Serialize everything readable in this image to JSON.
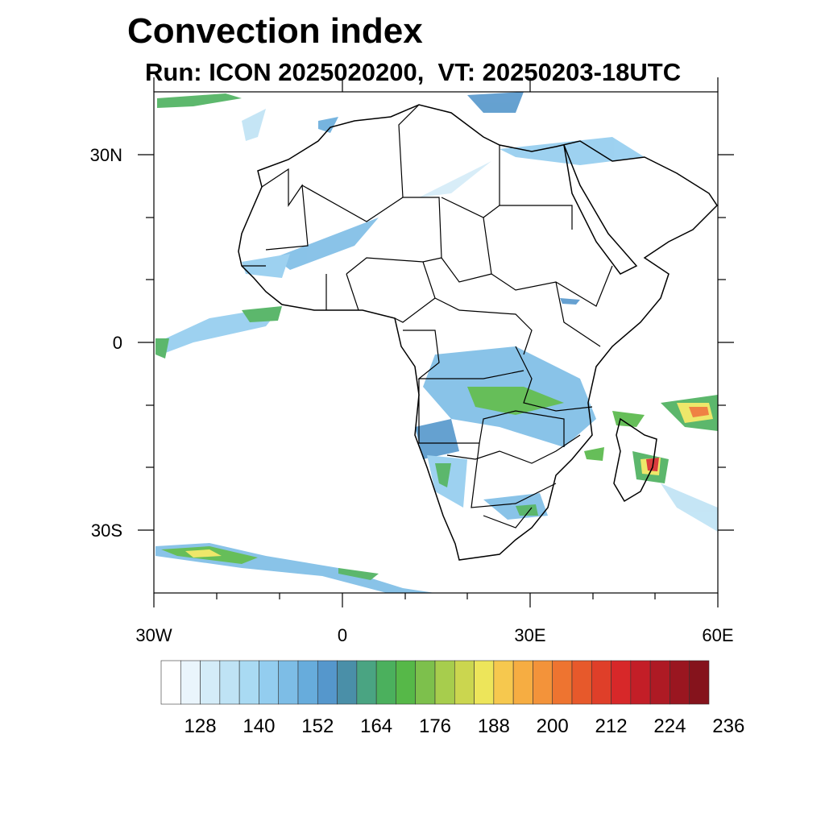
{
  "title": "Convection index",
  "subtitle": "Run: ICON 2025020200,  VT: 20250203-18UTC",
  "map": {
    "region": "Africa",
    "lon_range": [
      -30,
      60
    ],
    "lat_range": [
      -40,
      40
    ],
    "x_ticks": [
      "30W",
      "0",
      "30E",
      "60E"
    ],
    "y_ticks": [
      "30N",
      "0",
      "30S"
    ]
  },
  "colorbar": {
    "colors": [
      "#ffffff",
      "#eaf5fc",
      "#d4ecf8",
      "#bfe3f5",
      "#a9daf3",
      "#93cdef",
      "#7dbde6",
      "#67acdc",
      "#5597cc",
      "#4a8fa8",
      "#4aa482",
      "#4bb05d",
      "#56b848",
      "#7dc04c",
      "#a7cd4d",
      "#cbd64f",
      "#ede55a",
      "#f6c84e",
      "#f6ad42",
      "#f3933a",
      "#ee7430",
      "#e7592b",
      "#df3f29",
      "#d72829",
      "#c31e27",
      "#ae1a24",
      "#9a1620",
      "#85131c"
    ],
    "tick_labels": [
      "128",
      "140",
      "152",
      "164",
      "176",
      "188",
      "200",
      "212",
      "224",
      "236"
    ]
  }
}
